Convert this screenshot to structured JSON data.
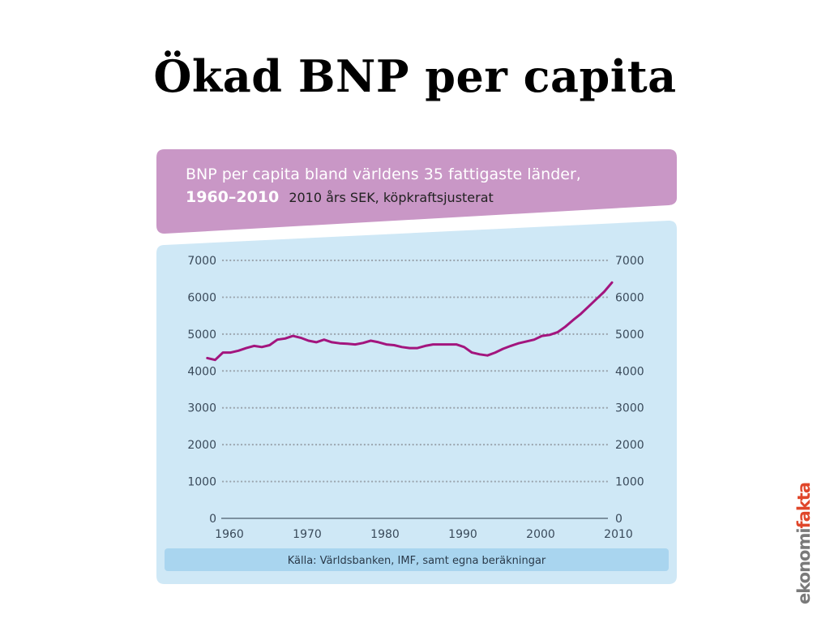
{
  "slide": {
    "title": "Ökad BNP per capita"
  },
  "brand": {
    "part1": "ekonomi",
    "part2": "fakta",
    "color_part1": "#7a7a7a",
    "color_part2": "#e0462a"
  },
  "colors": {
    "header_band": "#c997c6",
    "plot_bg": "#cfe8f6",
    "source_band": "#a9d5ef",
    "line": "#a3157e"
  },
  "chart_data": {
    "type": "line",
    "title": "BNP per capita bland världens 35 fattigaste länder,",
    "title_line2_bold": "1960–2010",
    "subtitle": "2010 års SEK, köpkraftsjusterat",
    "source": "Källa: Världsbanken, IMF, samt egna beräkningar",
    "xlabel": "",
    "ylabel": "",
    "xlim": [
      1960,
      2010
    ],
    "ylim": [
      0,
      7000
    ],
    "x_ticks": [
      1960,
      1970,
      1980,
      1990,
      2000,
      2010
    ],
    "y_ticks": [
      0,
      1000,
      2000,
      3000,
      4000,
      5000,
      6000,
      7000
    ],
    "y_axis_both_sides": true,
    "grid": "dotted-horizontal",
    "series": [
      {
        "x": [
          1958,
          1959,
          1960,
          1961,
          1962,
          1963,
          1964,
          1965,
          1966,
          1967,
          1968,
          1969,
          1970,
          1971,
          1972,
          1973,
          1974,
          1975,
          1976,
          1977,
          1978,
          1979,
          1980,
          1981,
          1982,
          1983,
          1984,
          1985,
          1986,
          1987,
          1988,
          1989,
          1990,
          1991,
          1992,
          1993,
          1994,
          1995,
          1996,
          1997,
          1998,
          1999,
          2000,
          2001,
          2002,
          2003,
          2004,
          2005,
          2006,
          2007,
          2008,
          2009,
          2010
        ],
        "values": [
          4350,
          4300,
          4500,
          4500,
          4550,
          4620,
          4680,
          4650,
          4700,
          4850,
          4880,
          4950,
          4900,
          4820,
          4780,
          4850,
          4780,
          4750,
          4740,
          4720,
          4760,
          4820,
          4780,
          4720,
          4700,
          4650,
          4620,
          4620,
          4680,
          4720,
          4720,
          4720,
          4720,
          4650,
          4500,
          4450,
          4420,
          4500,
          4600,
          4680,
          4750,
          4800,
          4850,
          4950,
          4980,
          5050,
          5200,
          5380,
          5550,
          5750,
          5950,
          6150,
          6400
        ]
      }
    ]
  }
}
